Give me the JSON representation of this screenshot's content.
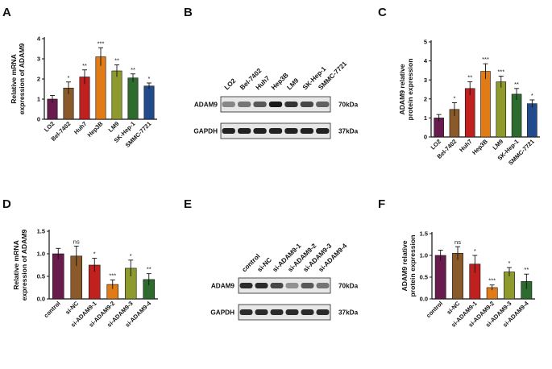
{
  "panels": {
    "A": "A",
    "B": "B",
    "C": "C",
    "D": "D",
    "E": "E",
    "F": "F"
  },
  "chart_data": [
    {
      "id": "A",
      "type": "bar",
      "ylabel": "Relative mRNA\nexpression of ADAM9",
      "ylim": [
        0,
        4
      ],
      "yticks": [
        0,
        1,
        2,
        3,
        4
      ],
      "categories": [
        "LO2",
        "Bel-7402",
        "Huh7",
        "Hep3B",
        "LM9",
        "SK-Hep-1",
        "SMMC-7721"
      ],
      "values": [
        1.0,
        1.55,
        2.1,
        3.1,
        2.4,
        2.05,
        1.65
      ],
      "errors": [
        0.18,
        0.3,
        0.35,
        0.45,
        0.3,
        0.2,
        0.15
      ],
      "significance": [
        "",
        "*",
        "**",
        "***",
        "**",
        "**",
        "*"
      ],
      "colors": [
        "#6a1b4d",
        "#8b5a2b",
        "#c0211f",
        "#e07b16",
        "#8f9a2c",
        "#2e6b2f",
        "#214b8c"
      ]
    },
    {
      "id": "C",
      "type": "bar",
      "ylabel": "ADAM9 relative\nprotein expression",
      "ylim": [
        0,
        5
      ],
      "yticks": [
        0,
        1,
        2,
        3,
        4,
        5
      ],
      "categories": [
        "LO2",
        "Bel-7402",
        "Huh7",
        "Hep3B",
        "LM9",
        "SK-Hep-1",
        "SMMC-7721"
      ],
      "values": [
        1.0,
        1.45,
        2.55,
        3.45,
        2.9,
        2.25,
        1.75
      ],
      "errors": [
        0.18,
        0.35,
        0.35,
        0.4,
        0.3,
        0.3,
        0.2
      ],
      "significance": [
        "",
        "*",
        "**",
        "***",
        "***",
        "**",
        "*"
      ],
      "colors": [
        "#6a1b4d",
        "#8b5a2b",
        "#c0211f",
        "#e07b16",
        "#8f9a2c",
        "#2e6b2f",
        "#214b8c"
      ]
    },
    {
      "id": "D",
      "type": "bar",
      "ylabel": "Relative mRNA\nexpression of ADAM9",
      "ylim": [
        0,
        1.5
      ],
      "yticks": [
        0.0,
        0.5,
        1.0,
        1.5
      ],
      "tickFormat": 1,
      "categories": [
        "control",
        "si-NC",
        "si-ADAM9-1",
        "si-ADAM9-2",
        "si-ADAM9-3",
        "si-ADAM9-4"
      ],
      "values": [
        1.0,
        0.95,
        0.75,
        0.32,
        0.68,
        0.43
      ],
      "errors": [
        0.12,
        0.22,
        0.15,
        0.1,
        0.18,
        0.13
      ],
      "significance": [
        "",
        "ns",
        "*",
        "***",
        "*",
        "**"
      ],
      "colors": [
        "#6a1b4d",
        "#8b5a2b",
        "#c0211f",
        "#e07b16",
        "#8f9a2c",
        "#2e6b2f"
      ]
    },
    {
      "id": "F",
      "type": "bar",
      "ylabel": "ADAM9 relative\nprotein expression",
      "ylim": [
        0,
        1.5
      ],
      "yticks": [
        0.0,
        0.5,
        1.0,
        1.5
      ],
      "tickFormat": 1,
      "categories": [
        "control",
        "si-NC",
        "si-ADAM9-1",
        "si-ADAM9-2",
        "si-ADAM9-3",
        "si-ADAM9-4"
      ],
      "values": [
        1.0,
        1.05,
        0.8,
        0.26,
        0.62,
        0.4
      ],
      "errors": [
        0.12,
        0.15,
        0.2,
        0.06,
        0.1,
        0.17
      ],
      "significance": [
        "",
        "ns",
        "*",
        "***",
        "*",
        "**"
      ],
      "colors": [
        "#6a1b4d",
        "#8b5a2b",
        "#c0211f",
        "#e07b16",
        "#8f9a2c",
        "#2e6b2f"
      ]
    }
  ],
  "blots": {
    "B": {
      "lanes": [
        "LO2",
        "Bel-7402",
        "Huh7",
        "Hep3B",
        "LM9",
        "SK-Hep-1",
        "SMMC-7721"
      ],
      "rows": [
        {
          "protein": "ADAM9",
          "size": "70kDa",
          "intensity": [
            0.35,
            0.45,
            0.6,
            0.95,
            0.8,
            0.7,
            0.55
          ]
        },
        {
          "protein": "GAPDH",
          "size": "37kDa",
          "intensity": [
            0.9,
            0.9,
            0.9,
            0.9,
            0.9,
            0.9,
            0.9
          ]
        }
      ]
    },
    "E": {
      "lanes": [
        "control",
        "si-NC",
        "si-ADAM9-1",
        "si-ADAM9-2",
        "si-ADAM9-3",
        "si-ADAM9-4"
      ],
      "rows": [
        {
          "protein": "ADAM9",
          "size": "70kDa",
          "intensity": [
            0.85,
            0.85,
            0.7,
            0.3,
            0.6,
            0.45
          ]
        },
        {
          "protein": "GAPDH",
          "size": "37kDa",
          "intensity": [
            0.85,
            0.85,
            0.85,
            0.85,
            0.85,
            0.85
          ]
        }
      ]
    }
  }
}
